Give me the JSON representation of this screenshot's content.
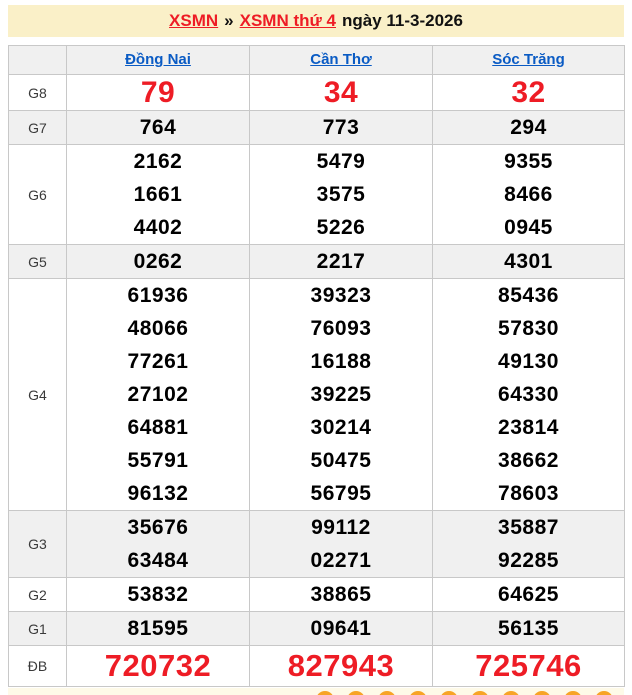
{
  "header": {
    "link_xsmn": "XSMN",
    "separator": "»",
    "link_day": "XSMN thứ 4",
    "date_text": "ngày 11-3-2026"
  },
  "table": {
    "columns": [
      "Đồng Nai",
      "Cần Thơ",
      "Sóc Trăng"
    ],
    "rows": [
      {
        "label": "G8",
        "style": "red-large",
        "values": [
          [
            "79"
          ],
          [
            "34"
          ],
          [
            "32"
          ]
        ]
      },
      {
        "label": "G7",
        "style": "black",
        "values": [
          [
            "764"
          ],
          [
            "773"
          ],
          [
            "294"
          ]
        ]
      },
      {
        "label": "G6",
        "style": "black",
        "values": [
          [
            "2162",
            "1661",
            "4402"
          ],
          [
            "5479",
            "3575",
            "5226"
          ],
          [
            "9355",
            "8466",
            "0945"
          ]
        ]
      },
      {
        "label": "G5",
        "style": "black",
        "values": [
          [
            "0262"
          ],
          [
            "2217"
          ],
          [
            "4301"
          ]
        ]
      },
      {
        "label": "G4",
        "style": "black",
        "values": [
          [
            "61936",
            "48066",
            "77261",
            "27102",
            "64881",
            "55791",
            "96132"
          ],
          [
            "39323",
            "76093",
            "16188",
            "39225",
            "30214",
            "50475",
            "56795"
          ],
          [
            "85436",
            "57830",
            "49130",
            "64330",
            "23814",
            "38662",
            "78603"
          ]
        ]
      },
      {
        "label": "G3",
        "style": "black",
        "values": [
          [
            "35676",
            "63484"
          ],
          [
            "99112",
            "02271"
          ],
          [
            "35887",
            "92285"
          ]
        ]
      },
      {
        "label": "G2",
        "style": "black",
        "values": [
          [
            "53832"
          ],
          [
            "38865"
          ],
          [
            "64625"
          ]
        ]
      },
      {
        "label": "G1",
        "style": "black",
        "values": [
          [
            "81595"
          ],
          [
            "09641"
          ],
          [
            "56135"
          ]
        ]
      },
      {
        "label": "ĐB",
        "style": "red-xlarge",
        "values": [
          [
            "720732"
          ],
          [
            "827943"
          ],
          [
            "725746"
          ]
        ]
      }
    ]
  },
  "footer": {
    "ball_count": 10
  },
  "colors": {
    "accent_red": "#ee1c25",
    "link_blue": "#0a5bc4",
    "header_bg": "#faf0c8",
    "alt_row_bg": "#f0f0f0",
    "border": "#c8c8c8",
    "footer_bg": "#fefae8",
    "ball_orange": "#f7a426"
  }
}
